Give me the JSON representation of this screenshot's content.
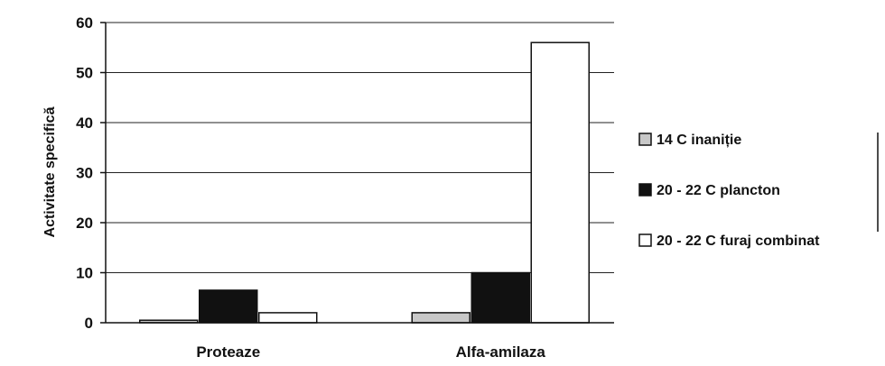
{
  "chart_data": {
    "type": "bar",
    "categories": [
      "Proteaze",
      "Alfa-amilaza"
    ],
    "series": [
      {
        "name": "14 C inaniție",
        "values": [
          0.5,
          2
        ],
        "color": "#c8c8c8"
      },
      {
        "name": "20 - 22 C plancton",
        "values": [
          6.5,
          10
        ],
        "color": "#111111"
      },
      {
        "name": "20 - 22 C furaj combinat",
        "values": [
          2,
          56
        ],
        "color": "#ffffff"
      }
    ],
    "title": "",
    "xlabel": "",
    "ylabel": "Activitate specifică",
    "ylim": [
      0,
      60
    ],
    "yticks": [
      0,
      10,
      20,
      30,
      40,
      50,
      60
    ],
    "grid": true,
    "legend": "right"
  }
}
